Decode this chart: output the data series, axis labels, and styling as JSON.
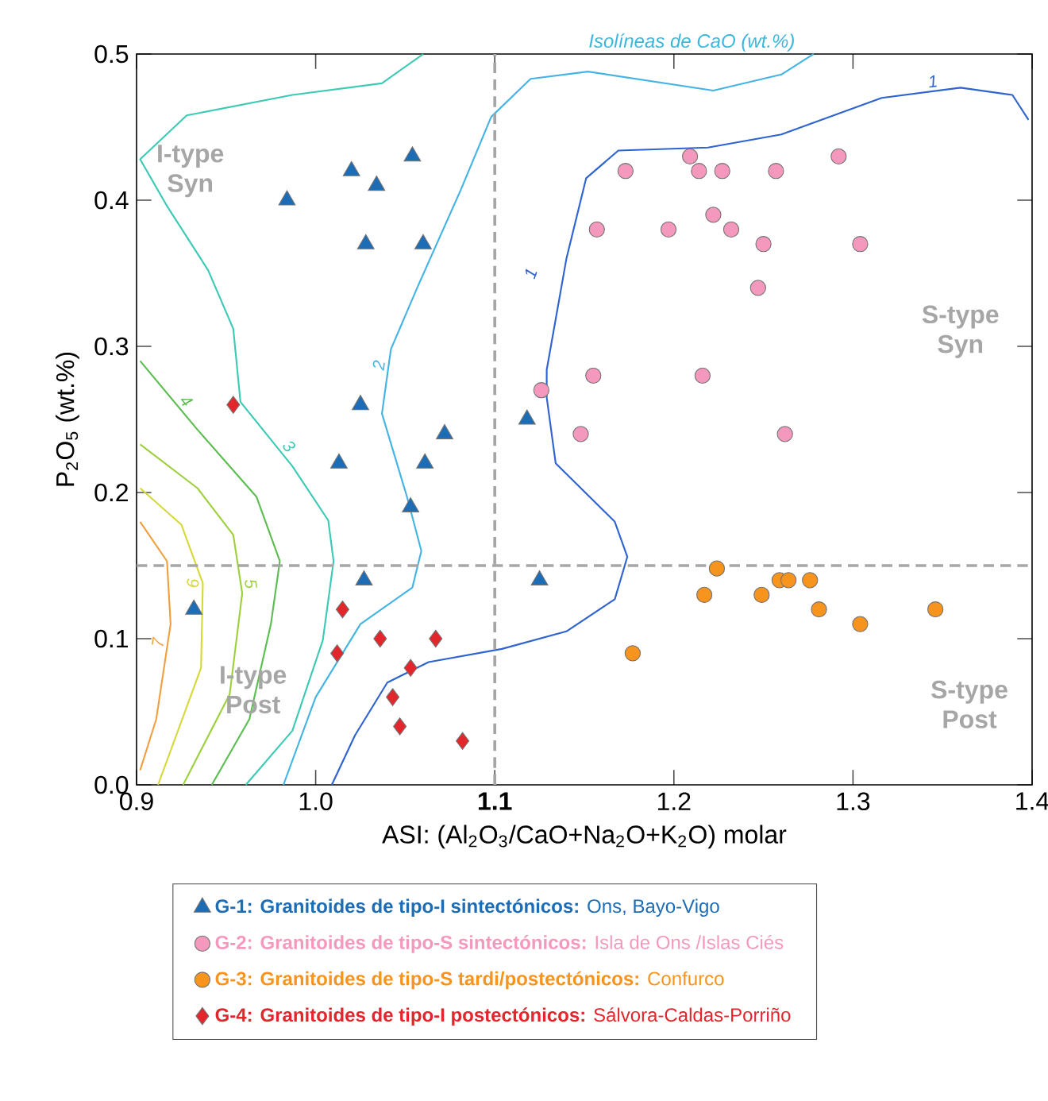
{
  "chart_data": {
    "type": "scatter",
    "xlabel": "ASI: (Al$_{2}$O$_{3}$/CaO+Na$_{2}$O+K$_{2}$O) molar",
    "ylabel": "P$_{2}$O$_{5}$ (wt.%)",
    "xlim": [
      0.9,
      1.4
    ],
    "ylim": [
      0,
      0.5
    ],
    "xticks": [
      0.9,
      {
        "value": 1.0,
        "label": "1.0"
      },
      {
        "value": 1.1,
        "label": "**1.1**"
      },
      1.2,
      1.3,
      1.4
    ],
    "yticks": [
      {
        "value": 0,
        "label": "0.0"
      },
      0.1,
      0.2,
      0.3,
      0.4,
      0.5
    ],
    "legend": "bottom",
    "ref_lines": [
      {
        "axis": "x",
        "value": 1.1,
        "color": "#a6a6a6",
        "line_style": "dashed"
      },
      {
        "axis": "y",
        "value": 0.15,
        "color": "#a6a6a6",
        "line_style": "dashed"
      }
    ],
    "annotations": [
      "Isolíneas de CaO (wt.%)",
      "I-type Syn",
      "S-type Syn",
      "I-type Post",
      "S-type Post",
      {
        "text": "1",
        "x": 1.12,
        "y": 0.35
      }
    ],
    "series": [
      {
        "type": "line",
        "name": "1",
        "color": "#2f63d0",
        "marker": "none",
        "line_style": "solid",
        "x": [
          1.009,
          1.022,
          1.04,
          1.063,
          1.104,
          1.14,
          1.167,
          1.174,
          1.167,
          1.134,
          1.129,
          1.129,
          1.14,
          1.151,
          1.169,
          1.219,
          1.26,
          1.316,
          1.36,
          1.389,
          1.398
        ],
        "values": [
          0,
          0.034,
          0.07,
          0.084,
          0.093,
          0.105,
          0.127,
          0.156,
          0.18,
          0.22,
          0.265,
          0.284,
          0.36,
          0.415,
          0.434,
          0.436,
          0.445,
          0.47,
          0.477,
          0.472,
          0.455
        ]
      },
      {
        "type": "line",
        "name": "2",
        "color": "#44b4e4",
        "marker": "none",
        "line_style": "solid",
        "x": [
          0.982,
          1.0,
          1.025,
          1.054,
          1.059,
          1.051,
          1.037,
          1.042,
          1.057,
          1.081,
          1.098,
          1.12,
          1.152,
          1.222,
          1.26,
          1.278
        ],
        "values": [
          0,
          0.06,
          0.11,
          0.135,
          0.16,
          0.197,
          0.254,
          0.298,
          0.341,
          0.407,
          0.457,
          0.483,
          0.488,
          0.475,
          0.486,
          0.5
        ]
      },
      {
        "type": "line",
        "name": "3",
        "color": "#3ccab4",
        "marker": "none",
        "line_style": "solid",
        "x": [
          1.06,
          1.037,
          0.987,
          0.928,
          0.902,
          0.917,
          0.94,
          0.954,
          0.958,
          0.987,
          1.007,
          1.01,
          1.004,
          0.987,
          0.961
        ],
        "values": [
          0.5,
          0.48,
          0.472,
          0.458,
          0.428,
          0.396,
          0.352,
          0.312,
          0.262,
          0.218,
          0.181,
          0.153,
          0.099,
          0.037,
          0
        ]
      },
      {
        "type": "line",
        "name": "4",
        "color": "#5cbd50",
        "marker": "none",
        "line_style": "solid",
        "x": [
          0.902,
          0.934,
          0.967,
          0.98,
          0.975,
          0.963,
          0.942
        ],
        "values": [
          0.29,
          0.243,
          0.197,
          0.153,
          0.11,
          0.045,
          0
        ]
      },
      {
        "type": "line",
        "name": "5",
        "color": "#9ed03e",
        "marker": "none",
        "line_style": "solid",
        "x": [
          0.902,
          0.934,
          0.954,
          0.959,
          0.952,
          0.926
        ],
        "values": [
          0.233,
          0.203,
          0.171,
          0.131,
          0.062,
          0
        ]
      },
      {
        "type": "line",
        "name": "6",
        "color": "#d6d83a",
        "marker": "none",
        "line_style": "solid",
        "x": [
          0.902,
          0.925,
          0.937,
          0.936,
          0.912
        ],
        "values": [
          0.203,
          0.178,
          0.138,
          0.08,
          0
        ]
      },
      {
        "type": "line",
        "name": "7",
        "color": "#f0a040",
        "marker": "none",
        "line_style": "solid",
        "x": [
          0.902,
          0.917,
          0.919,
          0.911,
          0.902
        ],
        "values": [
          0.18,
          0.153,
          0.11,
          0.045,
          0.01
        ]
      },
      {
        "name": "**G-1:  Granitoides de tipo-I sintectónicos:** Ons, Bayo-Vigo",
        "color": "#1c6db5",
        "marker": "triangle",
        "x": [
          0.984,
          1.02,
          1.034,
          1.054,
          1.028,
          1.06,
          1.025,
          1.013,
          1.061,
          1.072,
          1.053,
          1.027,
          0.932,
          1.118,
          1.125
        ],
        "values": [
          0.4,
          0.42,
          0.41,
          0.43,
          0.37,
          0.37,
          0.26,
          0.22,
          0.22,
          0.24,
          0.19,
          0.14,
          0.12,
          0.25,
          0.14
        ]
      },
      {
        "name": "**G-2:  Granitoides de tipo-S sintectónicos:** Isla de Ons /Islas Ciés",
        "color": "#f598bd",
        "marker": "circle",
        "x": [
          1.173,
          1.209,
          1.214,
          1.227,
          1.257,
          1.292,
          1.157,
          1.197,
          1.222,
          1.232,
          1.25,
          1.304,
          1.247,
          1.126,
          1.155,
          1.216,
          1.148,
          1.262
        ],
        "values": [
          0.42,
          0.43,
          0.42,
          0.42,
          0.42,
          0.43,
          0.38,
          0.38,
          0.39,
          0.38,
          0.37,
          0.37,
          0.34,
          0.27,
          0.28,
          0.28,
          0.24,
          0.24
        ]
      },
      {
        "name": "**G-3:  Granitoides de tipo-S tardi/postectónicos:** Confurco",
        "color": "#f7941d",
        "marker": "circle",
        "x": [
          1.224,
          1.217,
          1.249,
          1.259,
          1.264,
          1.276,
          1.281,
          1.304,
          1.346,
          1.177
        ],
        "values": [
          0.148,
          0.13,
          0.13,
          0.14,
          0.14,
          0.14,
          0.12,
          0.11,
          0.12,
          0.09
        ]
      },
      {
        "name": "**G-4:  Granitoides de tipo-I postectónicos:** Sálvora-Caldas-Porriño",
        "color": "#e3262b",
        "marker": "diamond",
        "x": [
          0.954,
          1.015,
          1.012,
          1.036,
          1.067,
          1.053,
          1.043,
          1.047,
          1.082
        ],
        "values": [
          0.26,
          0.12,
          0.09,
          0.1,
          0.1,
          0.08,
          0.06,
          0.04,
          0.03
        ]
      }
    ]
  }
}
